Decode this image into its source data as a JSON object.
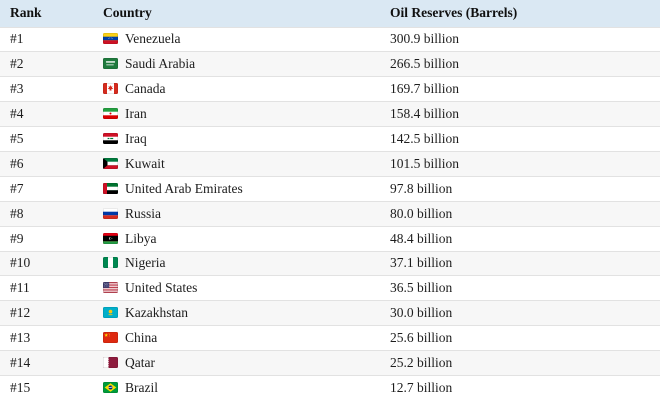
{
  "table": {
    "columns": [
      "Rank",
      "Country",
      "Oil Reserves (Barrels)"
    ],
    "rows": [
      {
        "rank": "#1",
        "country": "Venezuela",
        "flag": "venezuela",
        "reserves": "300.9 billion"
      },
      {
        "rank": "#2",
        "country": "Saudi Arabia",
        "flag": "saudi-arabia",
        "reserves": "266.5 billion"
      },
      {
        "rank": "#3",
        "country": "Canada",
        "flag": "canada",
        "reserves": "169.7 billion"
      },
      {
        "rank": "#4",
        "country": "Iran",
        "flag": "iran",
        "reserves": "158.4 billion"
      },
      {
        "rank": "#5",
        "country": "Iraq",
        "flag": "iraq",
        "reserves": "142.5 billion"
      },
      {
        "rank": "#6",
        "country": "Kuwait",
        "flag": "kuwait",
        "reserves": "101.5 billion"
      },
      {
        "rank": "#7",
        "country": "United Arab Emirates",
        "flag": "uae",
        "reserves": "97.8 billion"
      },
      {
        "rank": "#8",
        "country": "Russia",
        "flag": "russia",
        "reserves": "80.0 billion"
      },
      {
        "rank": "#9",
        "country": "Libya",
        "flag": "libya",
        "reserves": "48.4 billion"
      },
      {
        "rank": "#10",
        "country": "Nigeria",
        "flag": "nigeria",
        "reserves": "37.1 billion"
      },
      {
        "rank": "#11",
        "country": "United States",
        "flag": "united-states",
        "reserves": "36.5 billion"
      },
      {
        "rank": "#12",
        "country": "Kazakhstan",
        "flag": "kazakhstan",
        "reserves": "30.0 billion"
      },
      {
        "rank": "#13",
        "country": "China",
        "flag": "china",
        "reserves": "25.6 billion"
      },
      {
        "rank": "#14",
        "country": "Qatar",
        "flag": "qatar",
        "reserves": "25.2 billion"
      },
      {
        "rank": "#15",
        "country": "Brazil",
        "flag": "brazil",
        "reserves": "12.7 billion"
      }
    ]
  },
  "colors": {
    "header_bg": "#dae8f3",
    "row_alt_bg": "#f7f7f7",
    "row_border": "#e2e2e2",
    "text": "#1d1d1d"
  }
}
